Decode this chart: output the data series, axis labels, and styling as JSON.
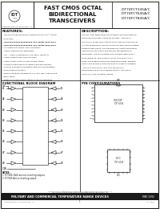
{
  "title_main": "FAST CMOS OCTAL\nBIDIRECTIONAL\nTRANSCEIVERS",
  "part_numbers": "IDT74FCT245A/C\nIDT74FCT645A/C\nIDT74FCT845A/C",
  "section_features": "FEATURES:",
  "section_description": "DESCRIPTION:",
  "features_lines": [
    "• IDT74FCT245/345/645/845 equivalent to FAST™ speed",
    "  (ACQ line)",
    "• IDT74FCT245/345/645/845 30% faster than FAST",
    "• IDT74FCT245/345/645/845 40% faster than FAST",
    "• TTL input and output level compatible",
    "• CMOS output power dissipation",
    "• IOL = 64mA (commercial) and 48mA (military)",
    "• Input current levels only 5μA max",
    "• CMOS power levels (2.5mW typical static)",
    "• Output current and over-rating (Latchup Immune)",
    "• Product available in Radiation Tolerant and Radiation",
    "  Enhancement versions",
    "• Military product compliant to MIL-STD-883, Class B and",
    "  DESC listed",
    "• Made in reliable JEDEC Standard '88 specifications"
  ],
  "desc_lines": [
    "The IDT octal bidirectional transceivers are built using an",
    "advanced dual metal CMOS technology.  The IDT74",
    "FCT245A/C at this level feature HCAC and IDT74FCT545 at",
    "A/C are designed for asynchronous two-way communication",
    "between data buses. The transmission (TDB) input/output",
    "exist also driven a data bus through the bidirectional",
    "transceiver. The serial active HIGH enables data from A",
    "ports (DB00) to, and receives (OMS) from B ports to A",
    "ports. The output enable (OE) input when input, disables",
    "both A and B ports by placing them at a high Z condition.",
    "  The IDT74FCT245A/C and IDT74FCT845A/C",
    "transceivers have non-inverting outputs. The IDT74",
    "FCT545A/C has inverting outputs."
  ],
  "block_diagram_title": "FUNCTIONAL BLOCK DIAGRAM",
  "pin_config_title": "PIN CONFIGURATIONS",
  "a_labels": [
    "A1",
    "A2",
    "A3",
    "A4",
    "A5",
    "A6",
    "A7",
    "A8"
  ],
  "b_labels": [
    "B1",
    "B2",
    "B3",
    "B4",
    "B5",
    "B6",
    "B7",
    "B8"
  ],
  "left_pins_dip": [
    "ÖE",
    "A1",
    "A2",
    "A3",
    "A4",
    "A5",
    "A6",
    "A7",
    "A8",
    "GND"
  ],
  "right_pins_dip": [
    "Vcc",
    "B1",
    "B2",
    "B3",
    "B4",
    "B5",
    "B6",
    "B7",
    "B8",
    "DIR"
  ],
  "notes": [
    "NOTES:",
    "1. FCT645: Both are non-inverting outputs",
    "2. FCT545 Active inverting output"
  ],
  "footer_text": "MILITARY AND COMMERCIAL TEMPERATURE RANGE DEVICES",
  "footer_date": "MAY 1992",
  "company": "Integrated Device Technology, Inc.",
  "copyright1": "The IDT logo is a registered trademark of Integrated Device Technology, Inc.",
  "copyright2": "IDT is a registered trademark of Integrated Device Technology, Inc.",
  "page_num": "1",
  "bg": "#f0f0eb",
  "white": "#ffffff",
  "black": "#000000",
  "dark": "#111111",
  "mid": "#444444",
  "footer_bg": "#1a1a1a",
  "footer_fg": "#ffffff"
}
